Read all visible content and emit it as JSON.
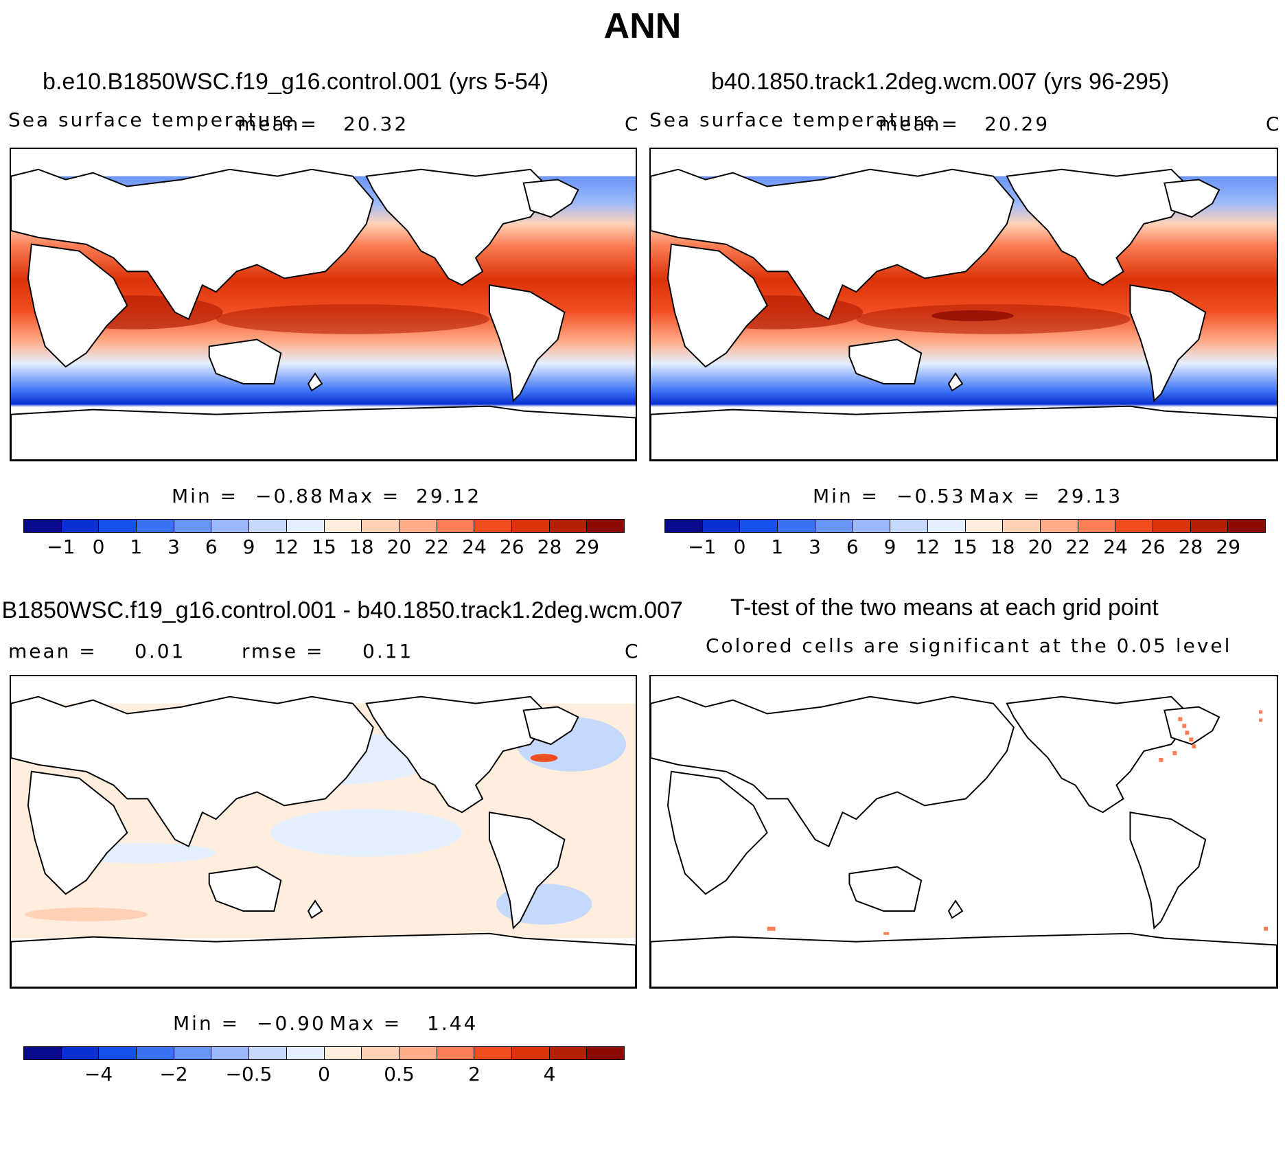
{
  "title": "ANN",
  "colorbar_colors": [
    "#0c0a8c",
    "#0a2fd0",
    "#1550ea",
    "#3a70f4",
    "#6a95f8",
    "#9ab8fb",
    "#c4d9fc",
    "#e3efff",
    "#ffeedd",
    "#ffd2b8",
    "#ffad8a",
    "#fb7e56",
    "#f24e22",
    "#db3209",
    "#b52005",
    "#8c0a03"
  ],
  "panels": [
    {
      "title": "b.e10.B1850WSC.f19_g16.control.001 (yrs 5-54)",
      "variable": "Sea surface temperature",
      "mean_label": "mean=",
      "mean_value": "20.32",
      "units": "C",
      "min_label": "Min =",
      "min_value": "−0.88",
      "max_label": "Max =",
      "max_value": "29.12",
      "ticks": [
        "−1",
        "0",
        "1",
        "3",
        "6",
        "9",
        "12",
        "15",
        "18",
        "20",
        "22",
        "24",
        "26",
        "28",
        "29"
      ]
    },
    {
      "title": "b40.1850.track1.2deg.wcm.007 (yrs 96-295)",
      "variable": "Sea surface temperature",
      "mean_label": "mean=",
      "mean_value": "20.29",
      "units": "C",
      "min_label": "Min =",
      "min_value": "−0.53",
      "max_label": "Max =",
      "max_value": "29.13",
      "ticks": [
        "−1",
        "0",
        "1",
        "3",
        "6",
        "9",
        "12",
        "15",
        "18",
        "20",
        "22",
        "24",
        "26",
        "28",
        "29"
      ]
    },
    {
      "title": "b.e10.B1850WSC.f19_g16.control.001 - b40.1850.track1.2deg.wcm.007",
      "mean_label": "mean =",
      "mean_value": "0.01",
      "rmse_label": "rmse =",
      "rmse_value": "0.11",
      "units": "C",
      "min_label": "Min =",
      "min_value": "−0.90",
      "max_label": "Max =",
      "max_value": "1.44",
      "ticks": [
        "−4",
        "−2",
        "−0.5",
        "0",
        "0.5",
        "2",
        "4"
      ]
    },
    {
      "title": "T-test of the two means at each grid point",
      "subtitle": "Colored cells are significant at the 0.05 level"
    }
  ]
}
